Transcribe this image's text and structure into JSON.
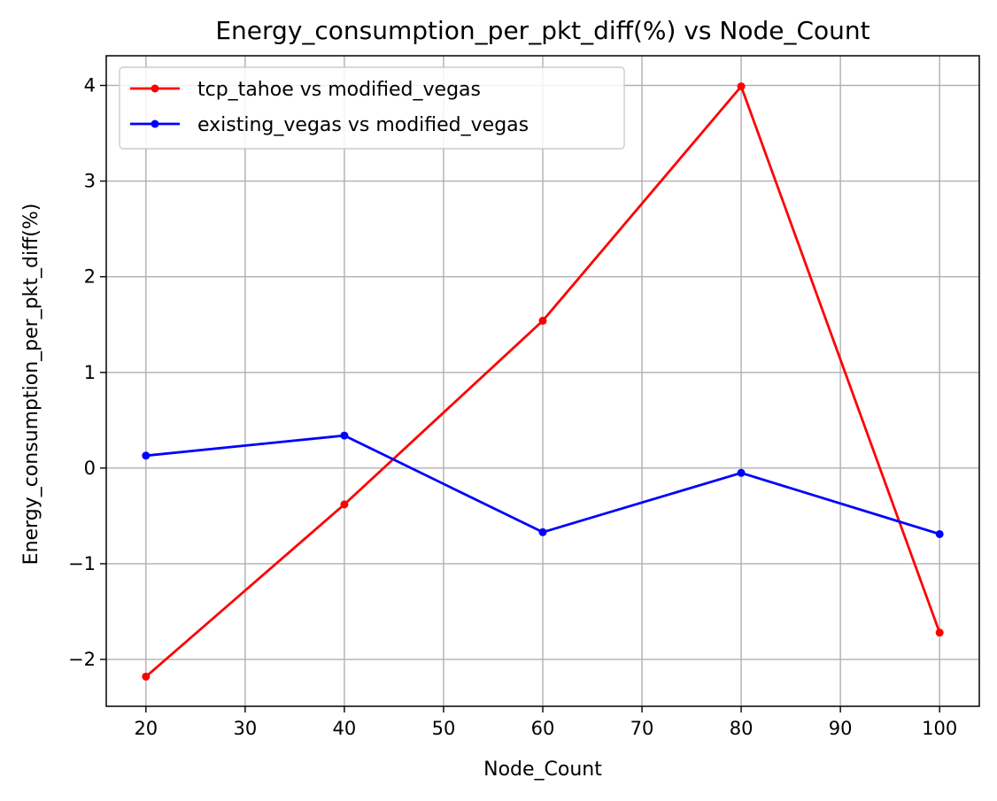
{
  "chart_data": {
    "type": "line",
    "title": "Energy_consumption_per_pkt_diff(%) vs Node_Count",
    "xlabel": "Node_Count",
    "ylabel": "Energy_consumption_per_pkt_diff(%)",
    "x": [
      20,
      40,
      60,
      80,
      100
    ],
    "xlim": [
      16,
      104
    ],
    "ylim": [
      -2.49,
      4.31
    ],
    "xticks": [
      20,
      30,
      40,
      50,
      60,
      70,
      80,
      90,
      100
    ],
    "yticks": [
      -2,
      -1,
      0,
      1,
      2,
      3,
      4
    ],
    "grid": true,
    "legend_position": "top-left",
    "series": [
      {
        "name": "tcp_tahoe vs modified_vegas",
        "color": "#ff0000",
        "values": [
          -2.18,
          -0.38,
          1.54,
          3.99,
          -1.72
        ]
      },
      {
        "name": "existing_vegas vs modified_vegas",
        "color": "#0000ff",
        "values": [
          0.13,
          0.34,
          -0.67,
          -0.05,
          -0.69
        ]
      }
    ]
  }
}
